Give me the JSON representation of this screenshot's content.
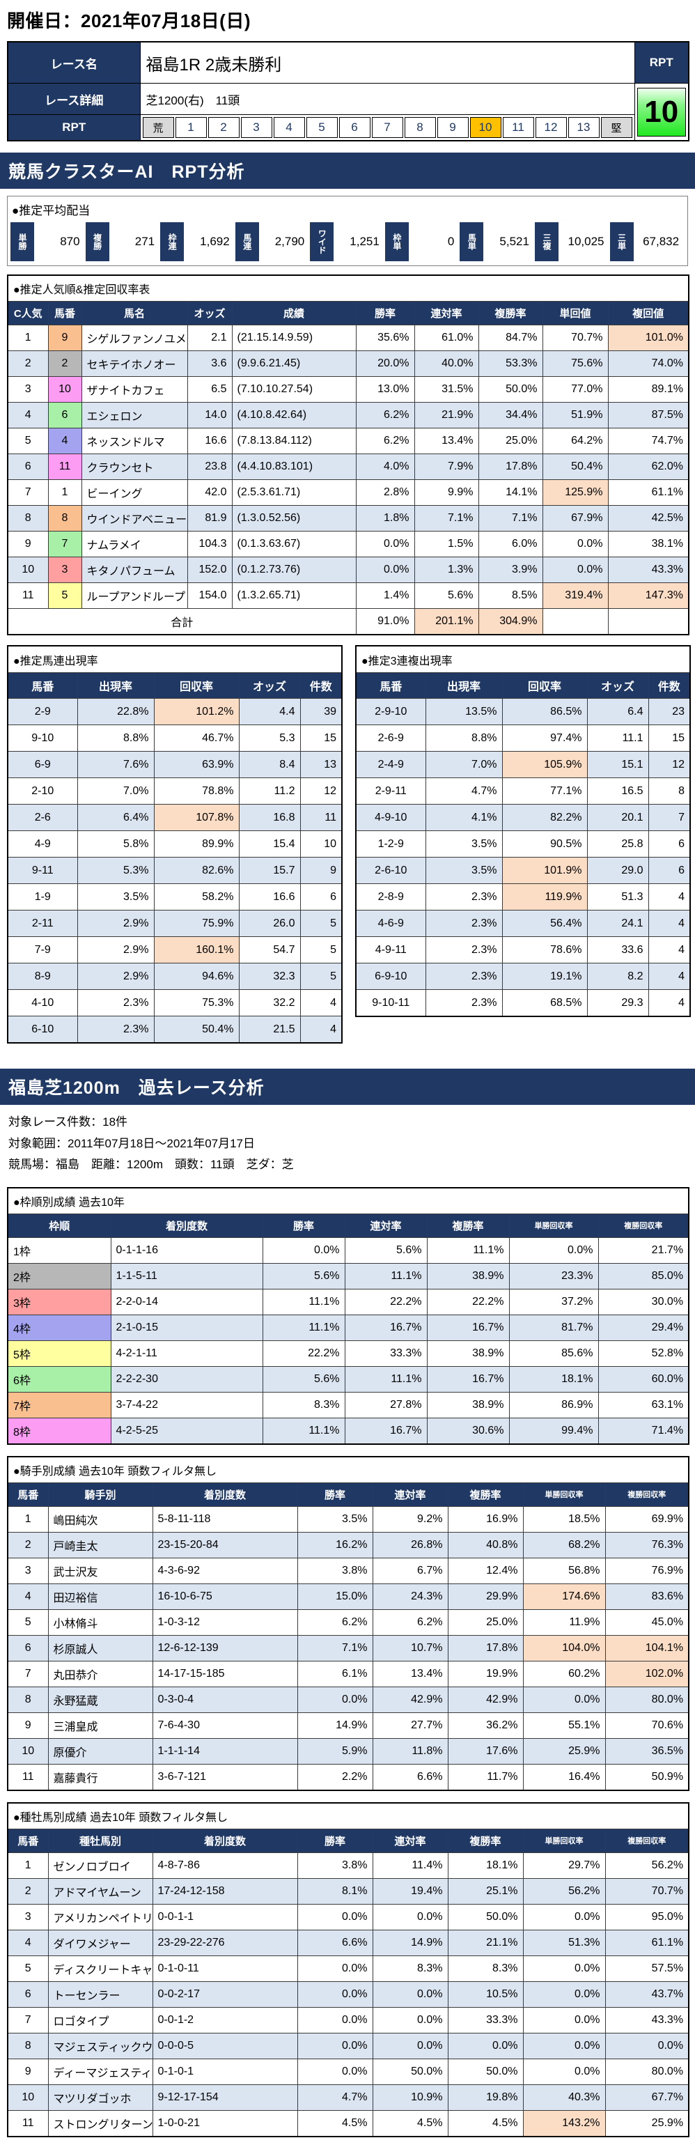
{
  "page": {
    "date_label": "開催日：2021年07月18日(日)"
  },
  "race_info": {
    "name_label": "レース名",
    "name": "福島1R 2歳未勝利",
    "detail_label": "レース詳細",
    "detail": "芝1200(右)　11頭",
    "rpt_row_label": "RPT",
    "rpt_header": "RPT",
    "rpt_value": "10",
    "rpt_active": "10",
    "rpt_scale": [
      "荒",
      "1",
      "2",
      "3",
      "4",
      "5",
      "6",
      "7",
      "8",
      "9",
      "10",
      "11",
      "12",
      "13",
      "堅"
    ]
  },
  "colors": {
    "navy": "#1f3864",
    "row_alt": "#dbe5f1",
    "highlight": "#fbdcc4",
    "rpt_active": "#ffc000",
    "rpt_value_green": "#21e821"
  },
  "section1": {
    "title": "競馬クラスターAI　RPT分析",
    "payout": {
      "label": "●推定平均配当",
      "items": [
        {
          "name": "単勝",
          "value": "870"
        },
        {
          "name": "複勝",
          "value": "271"
        },
        {
          "name": "枠連",
          "value": "1,692"
        },
        {
          "name": "馬連",
          "value": "2,790"
        },
        {
          "name": "ワイド",
          "value": "1,251"
        },
        {
          "name": "枠単",
          "value": "0"
        },
        {
          "name": "馬単",
          "value": "5,521"
        },
        {
          "name": "三複",
          "value": "10,025"
        },
        {
          "name": "三単",
          "value": "67,832"
        }
      ]
    },
    "main_table": {
      "label": "●推定人気順&推定回収率表",
      "headers": [
        "C人気",
        "馬番",
        "馬名",
        "オッズ",
        "成績",
        "勝率",
        "連対率",
        "複勝率",
        "単回値",
        "複回値"
      ],
      "rows": [
        {
          "c": "1",
          "num": "9",
          "waku": "orange",
          "name": "シゲルファンノユメ",
          "odds": "2.1",
          "rec": "(21.15.14.9.59)",
          "win": "35.6%",
          "ren": "61.0%",
          "fuku": "84.7%",
          "tan": "70.7%",
          "fk": "101.0%",
          "hl": [
            "fk"
          ]
        },
        {
          "c": "2",
          "num": "2",
          "waku": "black",
          "name": "セキテイホノオー",
          "odds": "3.6",
          "rec": "(9.9.6.21.45)",
          "win": "20.0%",
          "ren": "40.0%",
          "fuku": "53.3%",
          "tan": "75.6%",
          "fk": "74.0%",
          "hl": []
        },
        {
          "c": "3",
          "num": "10",
          "waku": "pink",
          "name": "ザナイトカフェ",
          "odds": "6.5",
          "rec": "(7.10.10.27.54)",
          "win": "13.0%",
          "ren": "31.5%",
          "fuku": "50.0%",
          "tan": "77.0%",
          "fk": "89.1%",
          "hl": []
        },
        {
          "c": "4",
          "num": "6",
          "waku": "green",
          "name": "エシェロン",
          "odds": "14.0",
          "rec": "(4.10.8.42.64)",
          "win": "6.2%",
          "ren": "21.9%",
          "fuku": "34.4%",
          "tan": "51.9%",
          "fk": "87.5%",
          "hl": []
        },
        {
          "c": "5",
          "num": "4",
          "waku": "blue",
          "name": "ネッスンドルマ",
          "odds": "16.6",
          "rec": "(7.8.13.84.112)",
          "win": "6.2%",
          "ren": "13.4%",
          "fuku": "25.0%",
          "tan": "64.2%",
          "fk": "74.7%",
          "hl": []
        },
        {
          "c": "6",
          "num": "11",
          "waku": "pink",
          "name": "クラウンセト",
          "odds": "23.8",
          "rec": "(4.4.10.83.101)",
          "win": "4.0%",
          "ren": "7.9%",
          "fuku": "17.8%",
          "tan": "50.4%",
          "fk": "62.0%",
          "hl": []
        },
        {
          "c": "7",
          "num": "1",
          "waku": "white",
          "name": "ビーイング",
          "odds": "42.0",
          "rec": "(2.5.3.61.71)",
          "win": "2.8%",
          "ren": "9.9%",
          "fuku": "14.1%",
          "tan": "125.9%",
          "fk": "61.1%",
          "hl": [
            "tan"
          ]
        },
        {
          "c": "8",
          "num": "8",
          "waku": "orange",
          "name": "ウインドアベニュー",
          "odds": "81.9",
          "rec": "(1.3.0.52.56)",
          "win": "1.8%",
          "ren": "7.1%",
          "fuku": "7.1%",
          "tan": "67.9%",
          "fk": "42.5%",
          "hl": []
        },
        {
          "c": "9",
          "num": "7",
          "waku": "green",
          "name": "ナムラメイ",
          "odds": "104.3",
          "rec": "(0.1.3.63.67)",
          "win": "0.0%",
          "ren": "1.5%",
          "fuku": "6.0%",
          "tan": "0.0%",
          "fk": "38.1%",
          "hl": []
        },
        {
          "c": "10",
          "num": "3",
          "waku": "red",
          "name": "キタノパフューム",
          "odds": "152.0",
          "rec": "(0.1.2.73.76)",
          "win": "0.0%",
          "ren": "1.3%",
          "fuku": "3.9%",
          "tan": "0.0%",
          "fk": "43.3%",
          "hl": []
        },
        {
          "c": "11",
          "num": "5",
          "waku": "yellow",
          "name": "ループアンドループ",
          "odds": "154.0",
          "rec": "(1.3.2.65.71)",
          "win": "1.4%",
          "ren": "5.6%",
          "fuku": "8.5%",
          "tan": "319.4%",
          "fk": "147.3%",
          "hl": [
            "tan",
            "fk"
          ]
        }
      ],
      "total_label": "合計",
      "total": {
        "win": "91.0%",
        "ren": "201.1%",
        "fuku": "304.9%"
      }
    },
    "umaren_table": {
      "label": "●推定馬連出現率",
      "headers": [
        "馬番",
        "出現率",
        "回収率",
        "オッズ",
        "件数"
      ],
      "rows": [
        {
          "pair": "2-9",
          "rate": "22.8%",
          "roi": "101.2%",
          "odds": "4.4",
          "count": "39",
          "hl": true
        },
        {
          "pair": "9-10",
          "rate": "8.8%",
          "roi": "46.7%",
          "odds": "5.3",
          "count": "15",
          "hl": false
        },
        {
          "pair": "6-9",
          "rate": "7.6%",
          "roi": "63.9%",
          "odds": "8.4",
          "count": "13",
          "hl": false
        },
        {
          "pair": "2-10",
          "rate": "7.0%",
          "roi": "78.8%",
          "odds": "11.2",
          "count": "12",
          "hl": false
        },
        {
          "pair": "2-6",
          "rate": "6.4%",
          "roi": "107.8%",
          "odds": "16.8",
          "count": "11",
          "hl": true
        },
        {
          "pair": "4-9",
          "rate": "5.8%",
          "roi": "89.9%",
          "odds": "15.4",
          "count": "10",
          "hl": false
        },
        {
          "pair": "9-11",
          "rate": "5.3%",
          "roi": "82.6%",
          "odds": "15.7",
          "count": "9",
          "hl": false
        },
        {
          "pair": "1-9",
          "rate": "3.5%",
          "roi": "58.2%",
          "odds": "16.6",
          "count": "6",
          "hl": false
        },
        {
          "pair": "2-11",
          "rate": "2.9%",
          "roi": "75.9%",
          "odds": "26.0",
          "count": "5",
          "hl": false
        },
        {
          "pair": "7-9",
          "rate": "2.9%",
          "roi": "160.1%",
          "odds": "54.7",
          "count": "5",
          "hl": true
        },
        {
          "pair": "8-9",
          "rate": "2.9%",
          "roi": "94.6%",
          "odds": "32.3",
          "count": "5",
          "hl": false
        },
        {
          "pair": "4-10",
          "rate": "2.3%",
          "roi": "75.3%",
          "odds": "32.2",
          "count": "4",
          "hl": false
        },
        {
          "pair": "6-10",
          "rate": "2.3%",
          "roi": "50.4%",
          "odds": "21.5",
          "count": "4",
          "hl": false
        }
      ]
    },
    "sanrenpuku_table": {
      "label": "●推定3連複出現率",
      "headers": [
        "馬番",
        "出現率",
        "回収率",
        "オッズ",
        "件数"
      ],
      "rows": [
        {
          "pair": "2-9-10",
          "rate": "13.5%",
          "roi": "86.5%",
          "odds": "6.4",
          "count": "23",
          "hl": false
        },
        {
          "pair": "2-6-9",
          "rate": "8.8%",
          "roi": "97.4%",
          "odds": "11.1",
          "count": "15",
          "hl": false
        },
        {
          "pair": "2-4-9",
          "rate": "7.0%",
          "roi": "105.9%",
          "odds": "15.1",
          "count": "12",
          "hl": true
        },
        {
          "pair": "2-9-11",
          "rate": "4.7%",
          "roi": "77.1%",
          "odds": "16.5",
          "count": "8",
          "hl": false
        },
        {
          "pair": "4-9-10",
          "rate": "4.1%",
          "roi": "82.2%",
          "odds": "20.1",
          "count": "7",
          "hl": false
        },
        {
          "pair": "1-2-9",
          "rate": "3.5%",
          "roi": "90.5%",
          "odds": "25.8",
          "count": "6",
          "hl": false
        },
        {
          "pair": "2-6-10",
          "rate": "3.5%",
          "roi": "101.9%",
          "odds": "29.0",
          "count": "6",
          "hl": true
        },
        {
          "pair": "2-8-9",
          "rate": "2.3%",
          "roi": "119.9%",
          "odds": "51.3",
          "count": "4",
          "hl": true
        },
        {
          "pair": "4-6-9",
          "rate": "2.3%",
          "roi": "56.4%",
          "odds": "24.1",
          "count": "4",
          "hl": false
        },
        {
          "pair": "4-9-11",
          "rate": "2.3%",
          "roi": "78.6%",
          "odds": "33.6",
          "count": "4",
          "hl": false
        },
        {
          "pair": "6-9-10",
          "rate": "2.3%",
          "roi": "19.1%",
          "odds": "8.2",
          "count": "4",
          "hl": false
        },
        {
          "pair": "9-10-11",
          "rate": "2.3%",
          "roi": "68.5%",
          "odds": "29.3",
          "count": "4",
          "hl": false
        }
      ]
    }
  },
  "section2": {
    "title": "福島芝1200m　過去レース分析",
    "info_lines": [
      "対象レース件数：18件",
      "対象範囲：2011年07月18日～2021年07月17日",
      "競馬場：福島　距離：1200m　頭数：11頭　芝ダ：芝"
    ],
    "waku_table": {
      "label": "●枠順別成績 過去10年",
      "headers": [
        "枠順",
        "着別度数",
        "勝率",
        "連対率",
        "複勝率",
        "単勝回収率",
        "複勝回収率"
      ],
      "rows": [
        {
          "waku": "1枠",
          "color": "white",
          "rec": "0-1-1-16",
          "win": "0.0%",
          "ren": "5.6%",
          "fuku": "11.1%",
          "tan": "0.0%",
          "fk": "21.7%"
        },
        {
          "waku": "2枠",
          "color": "black",
          "rec": "1-1-5-11",
          "win": "5.6%",
          "ren": "11.1%",
          "fuku": "38.9%",
          "tan": "23.3%",
          "fk": "85.0%"
        },
        {
          "waku": "3枠",
          "color": "red",
          "rec": "2-2-0-14",
          "win": "11.1%",
          "ren": "22.2%",
          "fuku": "22.2%",
          "tan": "37.2%",
          "fk": "30.0%"
        },
        {
          "waku": "4枠",
          "color": "blue",
          "rec": "2-1-0-15",
          "win": "11.1%",
          "ren": "16.7%",
          "fuku": "16.7%",
          "tan": "81.7%",
          "fk": "29.4%"
        },
        {
          "waku": "5枠",
          "color": "yellow",
          "rec": "4-2-1-11",
          "win": "22.2%",
          "ren": "33.3%",
          "fuku": "38.9%",
          "tan": "85.6%",
          "fk": "52.8%"
        },
        {
          "waku": "6枠",
          "color": "green",
          "rec": "2-2-2-30",
          "win": "5.6%",
          "ren": "11.1%",
          "fuku": "16.7%",
          "tan": "18.1%",
          "fk": "60.0%"
        },
        {
          "waku": "7枠",
          "color": "orange",
          "rec": "3-7-4-22",
          "win": "8.3%",
          "ren": "27.8%",
          "fuku": "38.9%",
          "tan": "86.9%",
          "fk": "63.1%"
        },
        {
          "waku": "8枠",
          "color": "pink",
          "rec": "4-2-5-25",
          "win": "11.1%",
          "ren": "16.7%",
          "fuku": "30.6%",
          "tan": "99.4%",
          "fk": "71.4%"
        }
      ]
    },
    "jockey_table": {
      "label": "●騎手別成績 過去10年 頭数フィルタ無し",
      "headers": [
        "馬番",
        "騎手別",
        "着別度数",
        "勝率",
        "連対率",
        "複勝率",
        "単勝回収率",
        "複勝回収率"
      ],
      "rows": [
        {
          "num": "1",
          "name": "嶋田純次",
          "rec": "5-8-11-118",
          "win": "3.5%",
          "ren": "9.2%",
          "fuku": "16.9%",
          "tan": "18.5%",
          "fk": "69.9%",
          "hl": []
        },
        {
          "num": "2",
          "name": "戸崎圭太",
          "rec": "23-15-20-84",
          "win": "16.2%",
          "ren": "26.8%",
          "fuku": "40.8%",
          "tan": "68.2%",
          "fk": "76.3%",
          "hl": []
        },
        {
          "num": "3",
          "name": "武士沢友",
          "rec": "4-3-6-92",
          "win": "3.8%",
          "ren": "6.7%",
          "fuku": "12.4%",
          "tan": "56.8%",
          "fk": "76.9%",
          "hl": []
        },
        {
          "num": "4",
          "name": "田辺裕信",
          "rec": "16-10-6-75",
          "win": "15.0%",
          "ren": "24.3%",
          "fuku": "29.9%",
          "tan": "174.6%",
          "fk": "83.6%",
          "hl": [
            "tan"
          ]
        },
        {
          "num": "5",
          "name": "小林脩斗",
          "rec": "1-0-3-12",
          "win": "6.2%",
          "ren": "6.2%",
          "fuku": "25.0%",
          "tan": "11.9%",
          "fk": "45.0%",
          "hl": []
        },
        {
          "num": "6",
          "name": "杉原誠人",
          "rec": "12-6-12-139",
          "win": "7.1%",
          "ren": "10.7%",
          "fuku": "17.8%",
          "tan": "104.0%",
          "fk": "104.1%",
          "hl": [
            "tan",
            "fk"
          ]
        },
        {
          "num": "7",
          "name": "丸田恭介",
          "rec": "14-17-15-185",
          "win": "6.1%",
          "ren": "13.4%",
          "fuku": "19.9%",
          "tan": "60.2%",
          "fk": "102.0%",
          "hl": [
            "fk"
          ]
        },
        {
          "num": "8",
          "name": "永野猛蔵",
          "rec": "0-3-0-4",
          "win": "0.0%",
          "ren": "42.9%",
          "fuku": "42.9%",
          "tan": "0.0%",
          "fk": "80.0%",
          "hl": []
        },
        {
          "num": "9",
          "name": "三浦皇成",
          "rec": "7-6-4-30",
          "win": "14.9%",
          "ren": "27.7%",
          "fuku": "36.2%",
          "tan": "55.1%",
          "fk": "70.6%",
          "hl": []
        },
        {
          "num": "10",
          "name": "原優介",
          "rec": "1-1-1-14",
          "win": "5.9%",
          "ren": "11.8%",
          "fuku": "17.6%",
          "tan": "25.9%",
          "fk": "36.5%",
          "hl": []
        },
        {
          "num": "11",
          "name": "嘉藤貴行",
          "rec": "3-6-7-121",
          "win": "2.2%",
          "ren": "6.6%",
          "fuku": "11.7%",
          "tan": "16.4%",
          "fk": "50.9%",
          "hl": []
        }
      ]
    },
    "sire_table": {
      "label": "●種牡馬別成績 過去10年 頭数フィルタ無し",
      "headers": [
        "馬番",
        "種牡馬別",
        "着別度数",
        "勝率",
        "連対率",
        "複勝率",
        "単勝回収率",
        "複勝回収率"
      ],
      "rows": [
        {
          "num": "1",
          "name": "ゼンノロブロイ",
          "rec": "4-8-7-86",
          "win": "3.8%",
          "ren": "11.4%",
          "fuku": "18.1%",
          "tan": "29.7%",
          "fk": "56.2%",
          "hl": []
        },
        {
          "num": "2",
          "name": "アドマイヤムーン",
          "rec": "17-24-12-158",
          "win": "8.1%",
          "ren": "19.4%",
          "fuku": "25.1%",
          "tan": "56.2%",
          "fk": "70.7%",
          "hl": []
        },
        {
          "num": "3",
          "name": "アメリカンペイトリオット",
          "rec": "0-0-1-1",
          "win": "0.0%",
          "ren": "0.0%",
          "fuku": "50.0%",
          "tan": "0.0%",
          "fk": "95.0%",
          "hl": []
        },
        {
          "num": "4",
          "name": "ダイワメジャー",
          "rec": "23-29-22-276",
          "win": "6.6%",
          "ren": "14.9%",
          "fuku": "21.1%",
          "tan": "51.3%",
          "fk": "61.1%",
          "hl": []
        },
        {
          "num": "5",
          "name": "ディスクリートキャット",
          "rec": "0-1-0-11",
          "win": "0.0%",
          "ren": "8.3%",
          "fuku": "8.3%",
          "tan": "0.0%",
          "fk": "57.5%",
          "hl": []
        },
        {
          "num": "6",
          "name": "トーセンラー",
          "rec": "0-0-2-17",
          "win": "0.0%",
          "ren": "0.0%",
          "fuku": "10.5%",
          "tan": "0.0%",
          "fk": "43.7%",
          "hl": []
        },
        {
          "num": "7",
          "name": "ロゴタイプ",
          "rec": "0-0-1-2",
          "win": "0.0%",
          "ren": "0.0%",
          "fuku": "33.3%",
          "tan": "0.0%",
          "fk": "43.3%",
          "hl": []
        },
        {
          "num": "8",
          "name": "マジェスティックウォリアー",
          "rec": "0-0-0-5",
          "win": "0.0%",
          "ren": "0.0%",
          "fuku": "0.0%",
          "tan": "0.0%",
          "fk": "0.0%",
          "hl": []
        },
        {
          "num": "9",
          "name": "ディーマジェスティ",
          "rec": "0-1-0-1",
          "win": "0.0%",
          "ren": "50.0%",
          "fuku": "50.0%",
          "tan": "0.0%",
          "fk": "80.0%",
          "hl": []
        },
        {
          "num": "10",
          "name": "マツリダゴッホ",
          "rec": "9-12-17-154",
          "win": "4.7%",
          "ren": "10.9%",
          "fuku": "19.8%",
          "tan": "40.3%",
          "fk": "67.7%",
          "hl": []
        },
        {
          "num": "11",
          "name": "ストロングリターン",
          "rec": "1-0-0-21",
          "win": "4.5%",
          "ren": "4.5%",
          "fuku": "4.5%",
          "tan": "143.2%",
          "fk": "25.9%",
          "hl": [
            "tan"
          ]
        }
      ]
    }
  }
}
